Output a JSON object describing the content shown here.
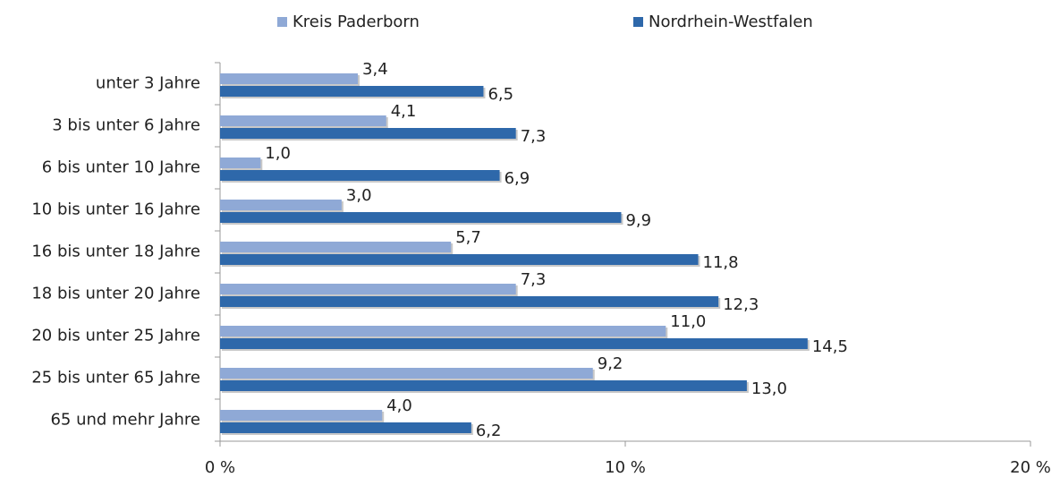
{
  "chart_data": {
    "type": "bar",
    "orientation": "horizontal",
    "categories": [
      "unter 3 Jahre",
      "3 bis unter 6 Jahre",
      "6 bis unter 10 Jahre",
      "10 bis unter 16 Jahre",
      "16 bis unter 18 Jahre",
      "18 bis unter 20 Jahre",
      "20 bis unter 25 Jahre",
      "25 bis unter 65 Jahre",
      "65 und mehr Jahre"
    ],
    "series": [
      {
        "name": "Kreis Paderborn",
        "color": "#8fa9d6",
        "values": [
          3.4,
          4.1,
          1.0,
          3.0,
          5.7,
          7.3,
          11.0,
          9.2,
          4.0
        ],
        "value_labels": [
          "3,4",
          "4,1",
          "1,0",
          "3,0",
          "5,7",
          "7,3",
          "11,0",
          "9,2",
          "4,0"
        ]
      },
      {
        "name": "Nordrhein-Westfalen",
        "color": "#2e68aa",
        "values": [
          6.5,
          7.3,
          6.9,
          9.9,
          11.8,
          12.3,
          14.5,
          13.0,
          6.2
        ],
        "value_labels": [
          "6,5",
          "7,3",
          "6,9",
          "9,9",
          "11,8",
          "12,3",
          "14,5",
          "13,0",
          "6,2"
        ]
      }
    ],
    "xlim": [
      0,
      20
    ],
    "xticks": [
      {
        "value": 0,
        "label": "0 %"
      },
      {
        "value": 10,
        "label": "10 %"
      },
      {
        "value": 20,
        "label": "20 %"
      }
    ],
    "legend": "top"
  }
}
